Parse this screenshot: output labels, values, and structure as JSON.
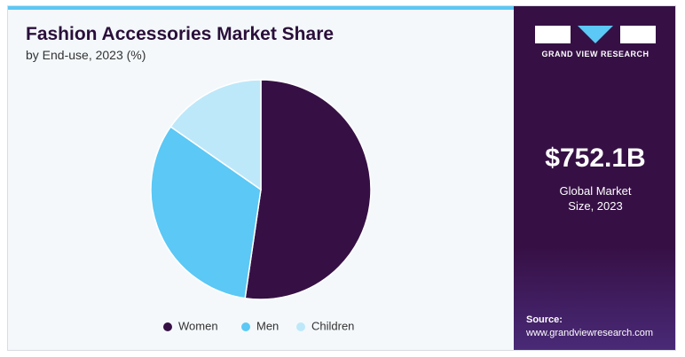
{
  "chart_data": {
    "type": "pie",
    "title": "Fashion Accessories Market Share",
    "subtitle": "by End-use, 2023 (%)",
    "categories": [
      "Women",
      "Men",
      "Children"
    ],
    "values": [
      52.3,
      32.4,
      15.3
    ],
    "colors": [
      "#361045",
      "#5bc8f5",
      "#bde8fa"
    ]
  },
  "sidebar": {
    "brand": "GRAND VIEW RESEARCH",
    "market_size": "$752.1B",
    "market_size_label": "Global Market Size, 2023",
    "source_label": "Source:",
    "source_url": "www.grandviewresearch.com"
  }
}
